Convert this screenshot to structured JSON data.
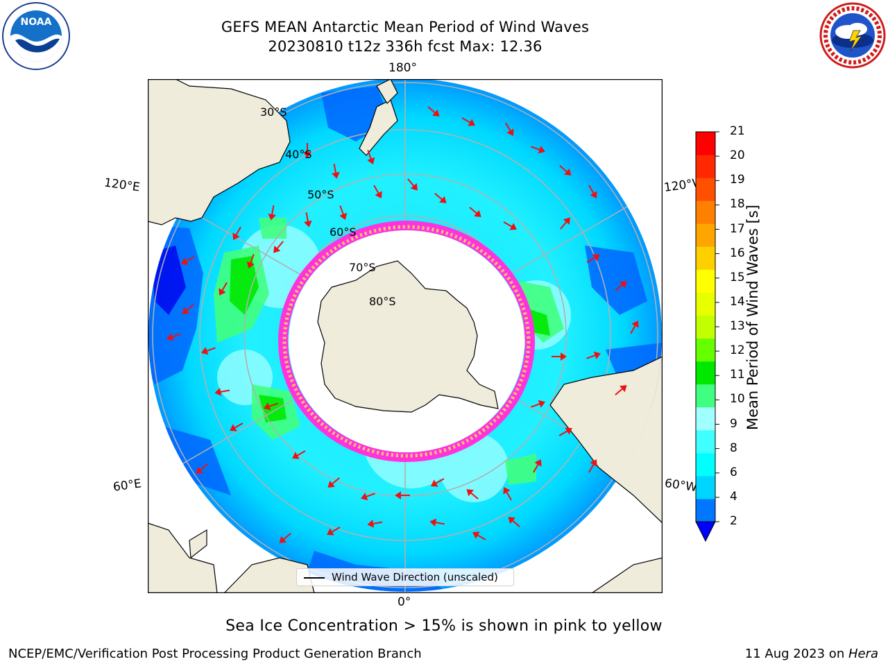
{
  "title": {
    "line1": "GEFS MEAN Antarctic Mean Period of Wind Waves",
    "line2": "20230810 t12z 336h fcst   Max: 12.36"
  },
  "logos": {
    "left_icon": "noaa-logo",
    "left_text": "NOAA",
    "left_ring_top": "NATIONAL OCEANIC AND ATMOSPHERIC ADMINISTRATION",
    "left_ring_bottom": "U.S. DEPARTMENT OF COMMERCE",
    "right_icon": "national-weather-service-logo",
    "right_ring_text": "NATIONAL WEATHER SERVICE"
  },
  "map": {
    "longitude_labels": {
      "top": "180°",
      "upper_left": "120°E",
      "upper_right": "120°W",
      "lower_left": "60°E",
      "lower_right": "60°W",
      "bottom": "0°"
    },
    "latitude_labels": [
      "30°S",
      "40°S",
      "50°S",
      "60°S",
      "70°S",
      "80°S"
    ],
    "legend": "Wind Wave Direction (unscaled)",
    "colors": {
      "land": "#efecdc",
      "ice_pink": "#ff44dd",
      "ice_yellow": "#ffe680",
      "arrow": "#ee1111"
    }
  },
  "colorbar": {
    "label": "Mean Period of Wind Waves [s]",
    "ticks": [
      "21",
      "20",
      "19",
      "18",
      "17",
      "16",
      "15",
      "14",
      "13",
      "12",
      "11",
      "10",
      "9",
      "8",
      "6",
      "4",
      "2"
    ],
    "bands": [
      "#0000ff",
      "#0077ff",
      "#00d5ff",
      "#00ffff",
      "#40ffff",
      "#a0ffff",
      "#40ff80",
      "#00e800",
      "#66ff00",
      "#c2ff00",
      "#e8ff00",
      "#ffff00",
      "#ffd000",
      "#ffa500",
      "#ff8000",
      "#ff5000",
      "#ff2800",
      "#ff0000"
    ]
  },
  "note": "Sea Ice Concentration > 15% is shown in pink to yellow",
  "footer": {
    "left": "NCEP/EMC/Verification Post Processing Product Generation Branch",
    "right_prefix": "11 Aug 2023 on ",
    "right_emph": "Hera"
  }
}
